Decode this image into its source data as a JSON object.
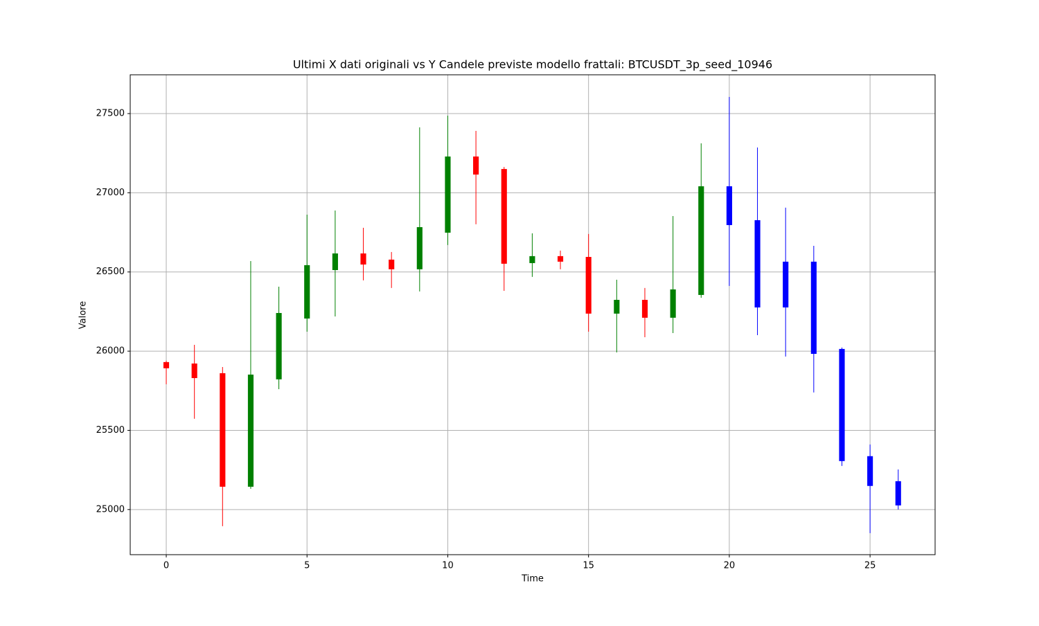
{
  "chart_data": {
    "type": "candlestick",
    "title": "Ultimi X dati originali vs Y Candele previste modello frattali: BTCUSDT_3p_seed_10946",
    "xlabel": "Time",
    "ylabel": "Valore",
    "x": [
      0,
      1,
      2,
      3,
      4,
      5,
      6,
      7,
      8,
      9,
      10,
      11,
      12,
      13,
      14,
      15,
      16,
      17,
      18,
      19,
      20,
      21,
      22,
      23,
      24,
      25,
      26
    ],
    "open": [
      25931,
      25922,
      25861,
      25144,
      25822,
      26206,
      26512,
      26617,
      26578,
      26517,
      26748,
      27229,
      27150,
      26556,
      26600,
      26595,
      26237,
      26324,
      26211,
      26355,
      27041,
      26827,
      26565,
      26565,
      26014,
      25337,
      25179
    ],
    "high": [
      25940,
      26040,
      25900,
      26569,
      26407,
      26862,
      26888,
      26779,
      26626,
      27413,
      27487,
      27391,
      27163,
      26744,
      26635,
      26740,
      26451,
      26399,
      26853,
      27312,
      27605,
      27286,
      26906,
      26665,
      26023,
      25411,
      25253
    ],
    "low": [
      25791,
      25573,
      24895,
      25131,
      25760,
      26123,
      26219,
      26447,
      26399,
      26377,
      26670,
      26801,
      26381,
      26469,
      26517,
      26123,
      25992,
      26088,
      26114,
      26337,
      26412,
      26101,
      25966,
      25739,
      25275,
      24851,
      25000
    ],
    "close": [
      25892,
      25830,
      25144,
      25852,
      26241,
      26543,
      26617,
      26547,
      26517,
      26783,
      27229,
      27115,
      26552,
      26600,
      26565,
      26237,
      26324,
      26211,
      26390,
      27041,
      26796,
      26276,
      26276,
      25983,
      25306,
      25149,
      25026
    ],
    "colors": [
      "#ff0000",
      "#ff0000",
      "#ff0000",
      "#008000",
      "#008000",
      "#008000",
      "#008000",
      "#ff0000",
      "#ff0000",
      "#008000",
      "#008000",
      "#ff0000",
      "#ff0000",
      "#008000",
      "#ff0000",
      "#ff0000",
      "#008000",
      "#ff0000",
      "#008000",
      "#008000",
      "#0000ff",
      "#0000ff",
      "#0000ff",
      "#0000ff",
      "#0000ff",
      "#0000ff",
      "#0000ff"
    ],
    "xlim": [
      -1.28,
      27.31
    ],
    "ylim": [
      24715,
      27745
    ],
    "xticks": [
      0,
      5,
      10,
      15,
      20,
      25
    ],
    "yticks": [
      25000,
      25500,
      26000,
      26500,
      27000,
      27500
    ],
    "grid": true
  }
}
